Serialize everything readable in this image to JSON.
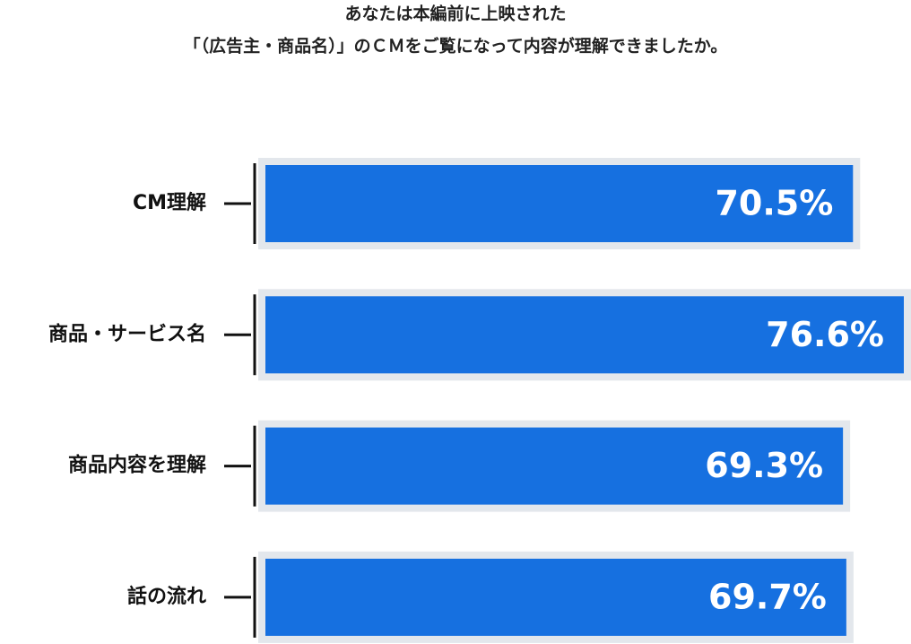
{
  "chart_data": {
    "type": "hbar",
    "title": [
      "あなたは本編前に上映された",
      "「（広告主・商品名）」のＣＭをご覧になって内容が理解できましたか。"
    ],
    "categories": [
      "CM理解",
      "商品・サービス名",
      "商品内容を理解",
      "話の流れ"
    ],
    "values": [
      70.5,
      76.6,
      69.3,
      69.7
    ],
    "value_labels": [
      "70.5%",
      "76.6%",
      "69.3%",
      "69.7%"
    ],
    "color": "#1670e0"
  }
}
